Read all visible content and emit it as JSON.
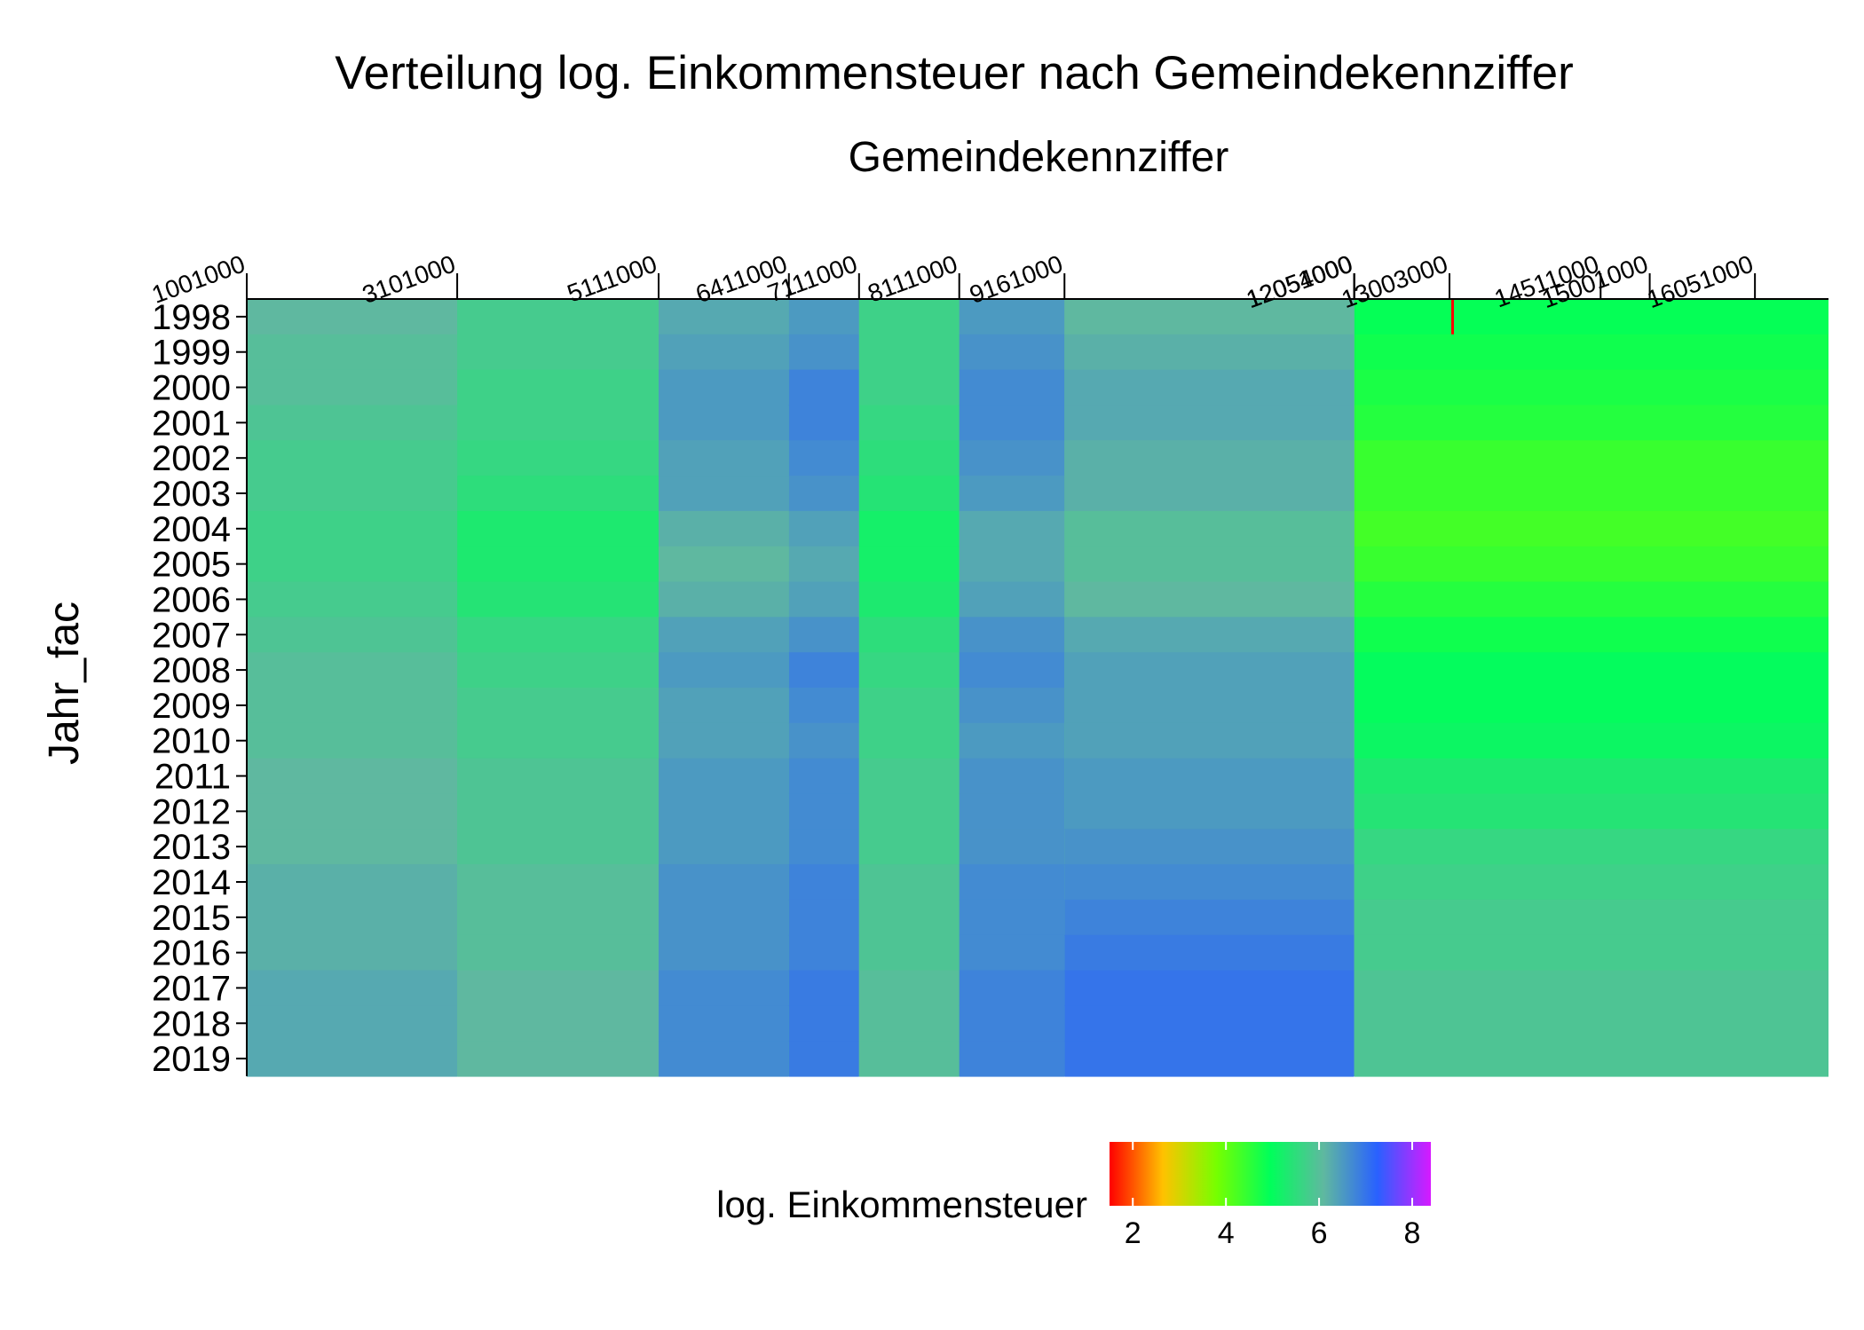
{
  "chart_data": {
    "type": "heatmap",
    "title": "Verteilung log. Einkommensteuer nach Gemeindekennziffer",
    "xlabel": "Gemeindekennziffer",
    "ylabel": "Jahr_fac",
    "x_axis_position": "top",
    "grid": false,
    "x_ticks": [
      "1001000",
      "3101000",
      "5111000",
      "6411000",
      "7111000",
      "8111000",
      "9161000",
      "12051000",
      "12054000",
      "13003000",
      "14511000",
      "15001000",
      "16051000"
    ],
    "x_tick_positions": [
      1001000,
      3101000,
      5111000,
      6411000,
      7111000,
      8111000,
      9161000,
      12051000,
      12054000,
      13003000,
      14511000,
      15001000,
      16051000
    ],
    "y_categories": [
      "1998",
      "1999",
      "2000",
      "2001",
      "2002",
      "2003",
      "2004",
      "2005",
      "2006",
      "2007",
      "2008",
      "2009",
      "2010",
      "2011",
      "2012",
      "2013",
      "2014",
      "2015",
      "2016",
      "2017",
      "2018",
      "2019"
    ],
    "segments": [
      {
        "from": "1001000",
        "to": "3101000",
        "values": [
          6.1,
          6.0,
          6.0,
          5.9,
          5.8,
          5.8,
          5.7,
          5.7,
          5.8,
          5.9,
          6.0,
          6.0,
          6.0,
          6.1,
          6.1,
          6.1,
          6.2,
          6.2,
          6.2,
          6.3,
          6.3,
          6.3
        ]
      },
      {
        "from": "3101000",
        "to": "5111000",
        "values": [
          5.8,
          5.8,
          5.7,
          5.7,
          5.6,
          5.5,
          5.3,
          5.3,
          5.4,
          5.6,
          5.7,
          5.8,
          5.8,
          5.9,
          5.9,
          5.9,
          6.0,
          6.0,
          6.0,
          6.1,
          6.1,
          6.1
        ]
      },
      {
        "from": "5111000",
        "to": "6411000",
        "values": [
          6.3,
          6.4,
          6.5,
          6.5,
          6.4,
          6.4,
          6.2,
          6.1,
          6.2,
          6.4,
          6.5,
          6.4,
          6.4,
          6.5,
          6.5,
          6.5,
          6.6,
          6.6,
          6.6,
          6.7,
          6.7,
          6.7
        ]
      },
      {
        "from": "6411000",
        "to": "7111000",
        "values": [
          6.5,
          6.6,
          6.8,
          6.8,
          6.7,
          6.6,
          6.4,
          6.3,
          6.4,
          6.6,
          6.8,
          6.7,
          6.6,
          6.7,
          6.7,
          6.7,
          6.8,
          6.8,
          6.8,
          6.9,
          6.9,
          6.9
        ]
      },
      {
        "from": "7111000",
        "to": "8111000",
        "values": [
          5.7,
          5.7,
          5.7,
          5.6,
          5.5,
          5.4,
          5.2,
          5.2,
          5.3,
          5.5,
          5.6,
          5.7,
          5.7,
          5.8,
          5.8,
          5.8,
          5.9,
          5.9,
          5.9,
          6.0,
          6.0,
          6.0
        ]
      },
      {
        "from": "8111000",
        "to": "9161000",
        "values": [
          6.5,
          6.6,
          6.7,
          6.7,
          6.6,
          6.5,
          6.3,
          6.3,
          6.4,
          6.6,
          6.7,
          6.6,
          6.5,
          6.6,
          6.6,
          6.6,
          6.7,
          6.7,
          6.7,
          6.8,
          6.8,
          6.8
        ]
      },
      {
        "from": "9161000",
        "to": "12051000",
        "values": [
          6.1,
          6.2,
          6.3,
          6.3,
          6.2,
          6.2,
          6.0,
          6.0,
          6.1,
          6.3,
          6.4,
          6.4,
          6.4,
          6.5,
          6.5,
          6.6,
          6.7,
          6.8,
          6.9,
          7.0,
          7.0,
          7.0
        ]
      },
      {
        "from": "12054000",
        "to": "16051000",
        "values": [
          4.9,
          4.8,
          4.7,
          4.6,
          4.4,
          4.4,
          4.3,
          4.4,
          4.6,
          4.8,
          5.0,
          5.0,
          5.1,
          5.3,
          5.4,
          5.6,
          5.7,
          5.8,
          5.8,
          5.9,
          5.9,
          5.9
        ]
      }
    ],
    "outlier": {
      "x": "13003000",
      "y": "1998",
      "value": 1.5
    },
    "legend": {
      "title": "log. Einkommensteuer",
      "position": "bottom",
      "ticks": [
        "2",
        "4",
        "6",
        "8"
      ],
      "tick_values": [
        2,
        4,
        6,
        8
      ],
      "range": [
        1.5,
        8.4
      ],
      "colors": [
        "#ff0000",
        "#ffc200",
        "#76ff00",
        "#00ff5a",
        "#5fb8a0",
        "#2961ff",
        "#d61aff"
      ]
    }
  }
}
